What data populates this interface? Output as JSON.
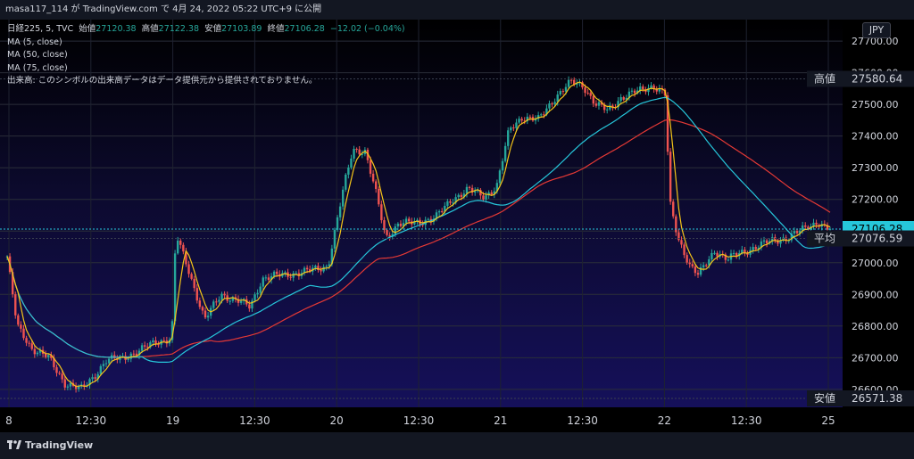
{
  "header": {
    "text": "masa117_114 が TradingView.com で 4月 24, 2022 05:22 UTC+9 に公開"
  },
  "legend": {
    "symbol": "日経225, 5, TVC",
    "open_label": "始値",
    "open": "27120.38",
    "high_label": "高値",
    "high": "27122.38",
    "low_label": "安値",
    "low": "27103.89",
    "close_label": "終値",
    "close": "27106.28",
    "change": "−12.02 (−0.04%)",
    "ma1": "MA (5, close)",
    "ma2": "MA (50, close)",
    "ma3": "MA (75, close)",
    "volume_note": "出来高: このシンボルの出来高データはデータ提供元から提供されておりません。"
  },
  "footer": {
    "brand": "TradingView"
  },
  "colors": {
    "up": "#26a69a",
    "down": "#ef5350",
    "ma5": "#f5c518",
    "ma50": "#26c6da",
    "ma75": "#e53935",
    "tag_bg": "#131722",
    "last_price": "#26c6da"
  },
  "chart_data": {
    "type": "candlestick",
    "currency": "JPY",
    "ylim": [
      26571.38,
      27720
    ],
    "y_ticks": [
      26600,
      26700,
      26800,
      26900,
      27000,
      27100,
      27200,
      27300,
      27400,
      27500,
      27600,
      27700
    ],
    "x_ticks": [
      "8",
      "12:30",
      "19",
      "12:30",
      "20",
      "12:30",
      "21",
      "12:30",
      "22",
      "12:30",
      "25"
    ],
    "price_tags": [
      {
        "label": "高値",
        "value": "27580.64"
      },
      {
        "label": "",
        "value": "27106.28"
      },
      {
        "label": "平均",
        "value": "27076.59"
      },
      {
        "label": "安値",
        "value": "26571.38"
      }
    ],
    "close_path": [
      [
        0,
        27020
      ],
      [
        0.012,
        26800
      ],
      [
        0.03,
        26730
      ],
      [
        0.05,
        26700
      ],
      [
        0.07,
        26620
      ],
      [
        0.09,
        26600
      ],
      [
        0.105,
        26640
      ],
      [
        0.12,
        26690
      ],
      [
        0.14,
        26700
      ],
      [
        0.16,
        26720
      ],
      [
        0.18,
        26750
      ],
      [
        0.2,
        26760
      ],
      [
        0.205,
        27090
      ],
      [
        0.22,
        26980
      ],
      [
        0.24,
        26820
      ],
      [
        0.26,
        26900
      ],
      [
        0.28,
        26880
      ],
      [
        0.295,
        26860
      ],
      [
        0.31,
        26950
      ],
      [
        0.33,
        26960
      ],
      [
        0.36,
        26970
      ],
      [
        0.39,
        26990
      ],
      [
        0.41,
        27250
      ],
      [
        0.42,
        27360
      ],
      [
        0.435,
        27350
      ],
      [
        0.45,
        27200
      ],
      [
        0.46,
        27080
      ],
      [
        0.475,
        27120
      ],
      [
        0.5,
        27130
      ],
      [
        0.52,
        27140
      ],
      [
        0.54,
        27200
      ],
      [
        0.56,
        27230
      ],
      [
        0.58,
        27210
      ],
      [
        0.595,
        27240
      ],
      [
        0.61,
        27420
      ],
      [
        0.625,
        27460
      ],
      [
        0.645,
        27450
      ],
      [
        0.665,
        27520
      ],
      [
        0.685,
        27570
      ],
      [
        0.7,
        27560
      ],
      [
        0.715,
        27500
      ],
      [
        0.73,
        27480
      ],
      [
        0.745,
        27520
      ],
      [
        0.765,
        27540
      ],
      [
        0.785,
        27560
      ],
      [
        0.8,
        27530
      ],
      [
        0.805,
        27190
      ],
      [
        0.815,
        27080
      ],
      [
        0.83,
        26990
      ],
      [
        0.84,
        26960
      ],
      [
        0.86,
        27040
      ],
      [
        0.875,
        27010
      ],
      [
        0.89,
        27030
      ],
      [
        0.91,
        27050
      ],
      [
        0.93,
        27070
      ],
      [
        0.95,
        27080
      ],
      [
        0.97,
        27110
      ],
      [
        0.985,
        27130
      ],
      [
        0.995,
        27106.28
      ]
    ]
  }
}
